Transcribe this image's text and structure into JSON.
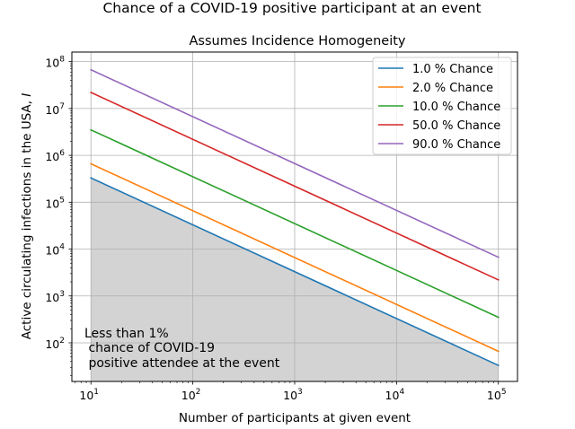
{
  "suptitle": "Chance of a COVID-19 positive participant at an event",
  "chart_data": {
    "type": "line",
    "title": "Assumes Incidence Homogeneity",
    "xlabel": "Number of participants at given event",
    "ylabel": "Active circulating infections in the USA, I",
    "ylabel_main": "Active circulating infections in the USA, ",
    "ylabel_var": "I",
    "xscale": "log",
    "yscale": "log",
    "xlim": [
      6.5,
      154000
    ],
    "ylim": [
      15,
      160000000
    ],
    "grid": true,
    "legend_position": "upper right",
    "x_ticks": [
      {
        "mant": "10",
        "exp": "1",
        "value": 10
      },
      {
        "mant": "10",
        "exp": "2",
        "value": 100
      },
      {
        "mant": "10",
        "exp": "3",
        "value": 1000
      },
      {
        "mant": "10",
        "exp": "4",
        "value": 10000
      },
      {
        "mant": "10",
        "exp": "5",
        "value": 100000
      }
    ],
    "y_ticks": [
      {
        "mant": "10",
        "exp": "2",
        "value": 100
      },
      {
        "mant": "10",
        "exp": "3",
        "value": 1000
      },
      {
        "mant": "10",
        "exp": "4",
        "value": 10000
      },
      {
        "mant": "10",
        "exp": "5",
        "value": 100000
      },
      {
        "mant": "10",
        "exp": "6",
        "value": 1000000
      },
      {
        "mant": "10",
        "exp": "7",
        "value": 10000000
      },
      {
        "mant": "10",
        "exp": "8",
        "value": 100000000
      }
    ],
    "x": [
      10,
      100000
    ],
    "series": [
      {
        "name": "1.0 % Chance",
        "color": "#1f77b4",
        "values": [
          330000,
          33
        ]
      },
      {
        "name": "2.0 % Chance",
        "color": "#ff7f0e",
        "values": [
          660000,
          66
        ]
      },
      {
        "name": "10.0 % Chance",
        "color": "#2ca02c",
        "values": [
          3500000,
          350
        ]
      },
      {
        "name": "50.0 % Chance",
        "color": "#d62728",
        "values": [
          22000000,
          2200
        ]
      },
      {
        "name": "90.0 % Chance",
        "color": "#9467bd",
        "values": [
          67000000,
          6700
        ]
      }
    ],
    "shaded_region": {
      "below_series": "1.0 % Chance",
      "color": "#d3d3d3",
      "label_lines": [
        "Less than 1%",
        " chance of COVID-19",
        " positive attendee at the event"
      ]
    }
  }
}
